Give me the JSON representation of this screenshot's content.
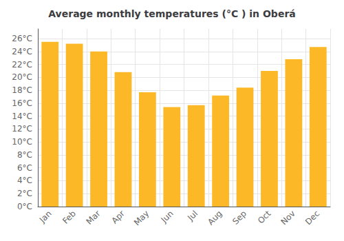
{
  "chart_data": {
    "type": "bar",
    "title": "Average monthly temperatures (°C ) in Oberá",
    "categories": [
      "Jan",
      "Feb",
      "Mar",
      "Apr",
      "May",
      "Jun",
      "Jul",
      "Aug",
      "Sep",
      "Oct",
      "Nov",
      "Dec"
    ],
    "values": [
      25.5,
      25.2,
      24.0,
      20.8,
      17.7,
      15.4,
      15.7,
      17.2,
      18.4,
      21.0,
      22.8,
      24.7
    ],
    "color": "#FDB827",
    "ylim": [
      0,
      27.5
    ],
    "yticks": [
      {
        "value": 0,
        "label": "0°C"
      },
      {
        "value": 2,
        "label": "2°C"
      },
      {
        "value": 4,
        "label": "4°C"
      },
      {
        "value": 6,
        "label": "6°C"
      },
      {
        "value": 8,
        "label": "8°C"
      },
      {
        "value": 10,
        "label": "10°C"
      },
      {
        "value": 12,
        "label": "12°C"
      },
      {
        "value": 14,
        "label": "14°C"
      },
      {
        "value": 16,
        "label": "16°C"
      },
      {
        "value": 18,
        "label": "18°C"
      },
      {
        "value": 20,
        "label": "20°C"
      },
      {
        "value": 22,
        "label": "22°C"
      },
      {
        "value": 24,
        "label": "24°C"
      },
      {
        "value": 26,
        "label": "26°C"
      }
    ],
    "grid": true
  }
}
